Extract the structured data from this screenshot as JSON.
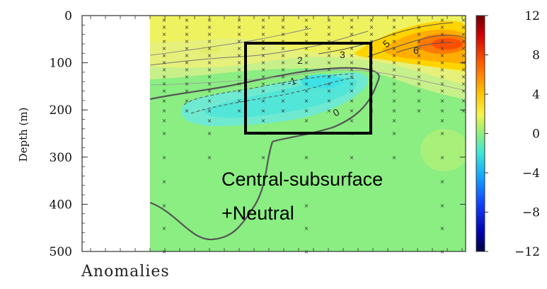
{
  "chart_data": {
    "type": "heatmap",
    "title": "",
    "xlabel": "Anomalies",
    "ylabel": "Depth (m)",
    "ylim": [
      500,
      0
    ],
    "yticks": [
      "0",
      "100",
      "200",
      "300",
      "400",
      "500"
    ],
    "colorbar": {
      "range": [
        -12,
        12
      ],
      "ticks": [
        "12",
        "8",
        "4",
        "0",
        "−4",
        "−8",
        "−12"
      ]
    },
    "contour_labels": [
      "-1",
      "0",
      "2",
      "3",
      "5",
      "6"
    ],
    "annotations": [
      "Central-subsurface",
      "+Neutral"
    ]
  }
}
